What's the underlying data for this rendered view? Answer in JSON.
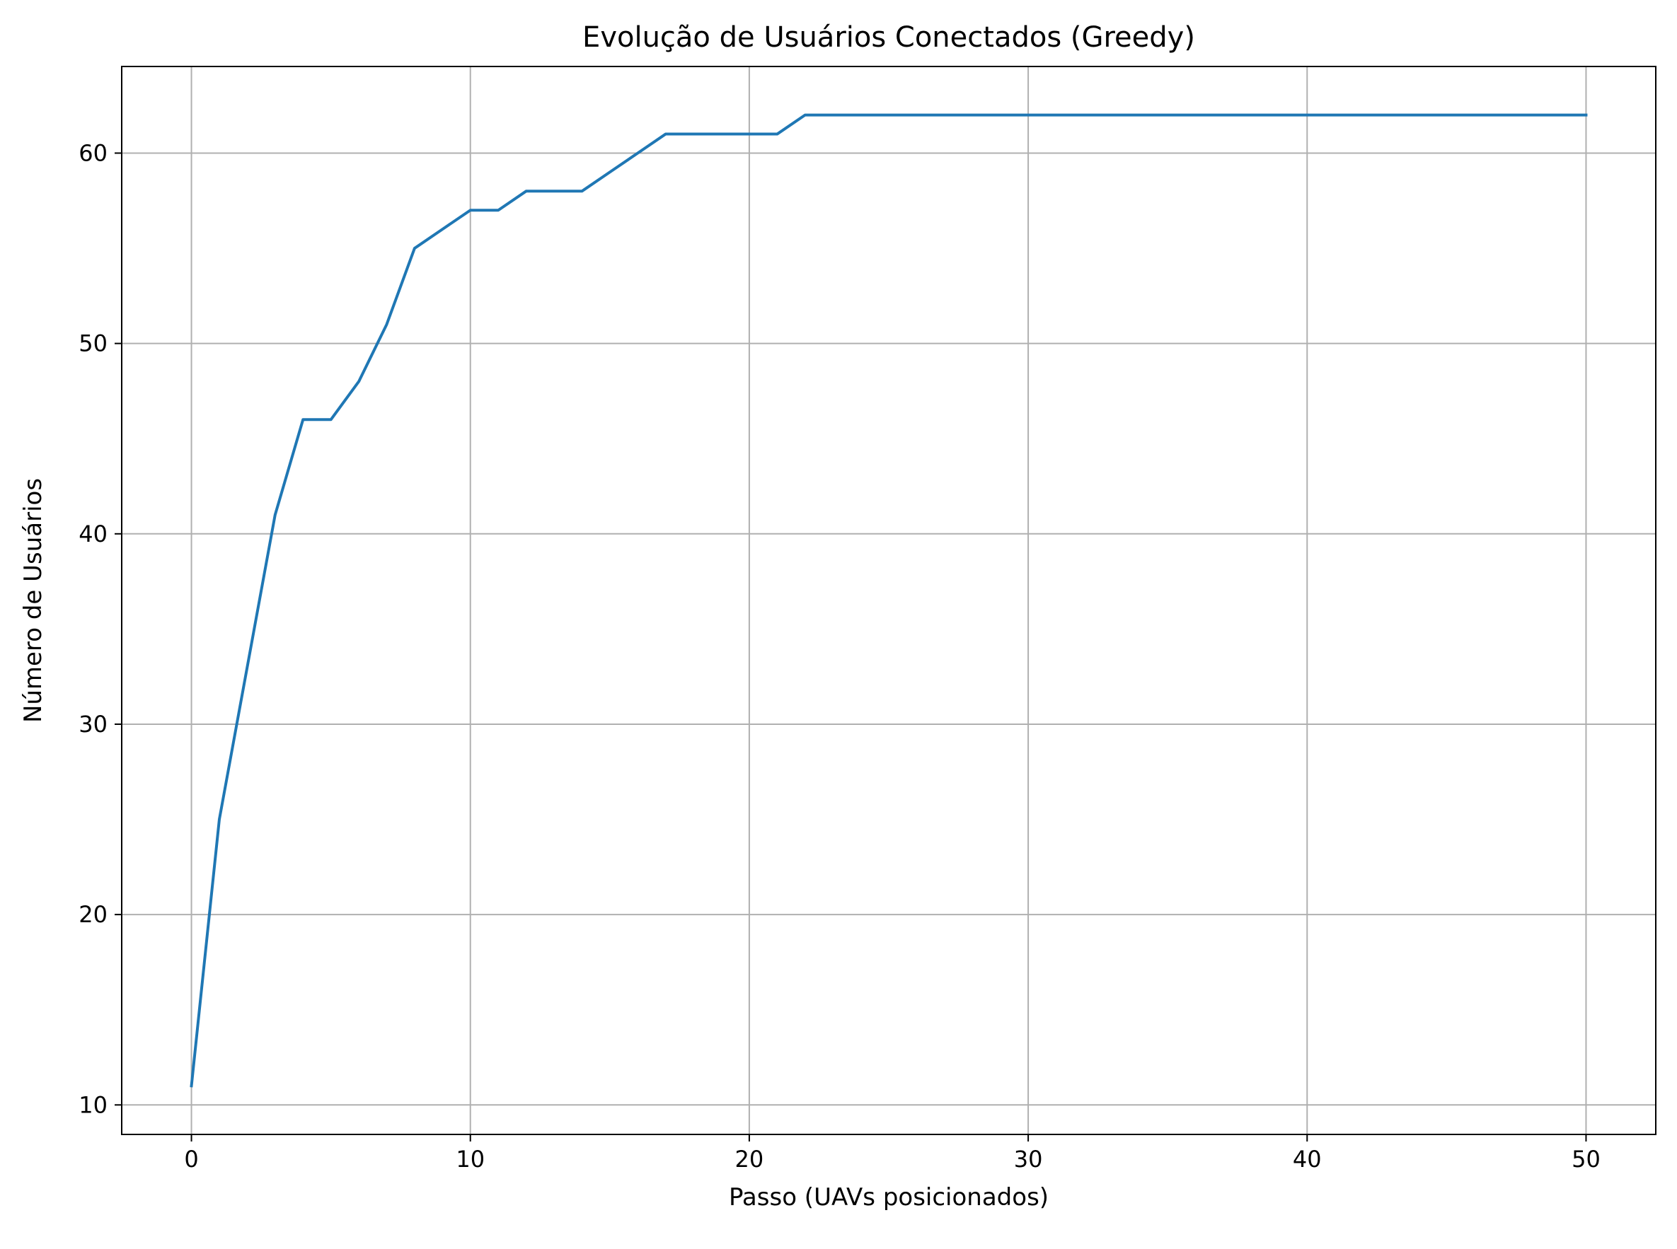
{
  "chart_data": {
    "type": "line",
    "title": "Evolução de Usuários Conectados (Greedy)",
    "xlabel": "Passo (UAVs posicionados)",
    "ylabel": "Número de Usuários",
    "xlim": [
      -2.5,
      52.5
    ],
    "ylim": [
      8.45,
      64.55
    ],
    "xticks": [
      0,
      10,
      20,
      30,
      40,
      50
    ],
    "yticks": [
      10,
      20,
      30,
      40,
      50,
      60
    ],
    "grid": true,
    "series": [
      {
        "color": "#1f77b4",
        "x": [
          0,
          1,
          2,
          3,
          4,
          5,
          6,
          7,
          8,
          9,
          10,
          11,
          12,
          13,
          14,
          15,
          16,
          17,
          18,
          19,
          20,
          21,
          22,
          23,
          24,
          25,
          26,
          27,
          28,
          29,
          30,
          31,
          32,
          33,
          34,
          35,
          36,
          37,
          38,
          39,
          40,
          41,
          42,
          43,
          44,
          45,
          46,
          47,
          48,
          49,
          50
        ],
        "y": [
          11,
          25,
          33,
          41,
          46,
          46,
          48,
          51,
          55,
          56,
          57,
          57,
          58,
          58,
          58,
          59,
          60,
          61,
          61,
          61,
          61,
          61,
          62,
          62,
          62,
          62,
          62,
          62,
          62,
          62,
          62,
          62,
          62,
          62,
          62,
          62,
          62,
          62,
          62,
          62,
          62,
          62,
          62,
          62,
          62,
          62,
          62,
          62,
          62,
          62,
          62
        ]
      }
    ]
  }
}
